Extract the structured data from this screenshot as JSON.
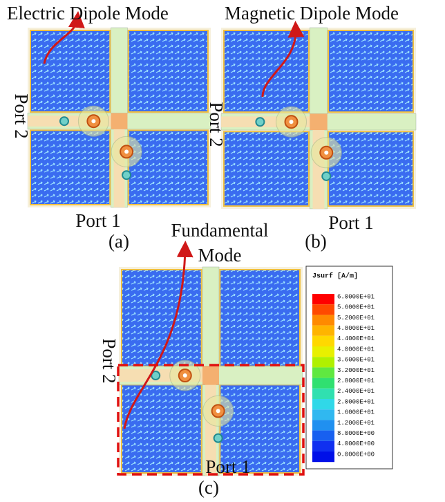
{
  "panels": [
    {
      "title": "Electric Dipole Mode",
      "port_vertical": "Port 2",
      "port_horizontal": "Port 1",
      "label": "(a)"
    },
    {
      "title": "Magnetic Dipole Mode",
      "port_vertical": "Port 2",
      "port_horizontal": "Port 1",
      "label": "(b)"
    },
    {
      "title": [
        "Fundamental",
        "Mode"
      ],
      "port_vertical": "Port 2",
      "port_horizontal": "Port 1",
      "label": "(c)"
    }
  ],
  "legend": {
    "title": "Jsurf [A/m]",
    "labels": [
      "6.0000E+01",
      "5.6000E+01",
      "5.2000E+01",
      "4.8000E+01",
      "4.4000E+01",
      "4.0000E+01",
      "3.6000E+01",
      "3.2000E+01",
      "2.8000E+01",
      "2.4000E+01",
      "2.0000E+01",
      "1.6000E+01",
      "1.2000E+01",
      "8.0000E+00",
      "4.0000E+00",
      "0.0000E+00"
    ]
  }
}
